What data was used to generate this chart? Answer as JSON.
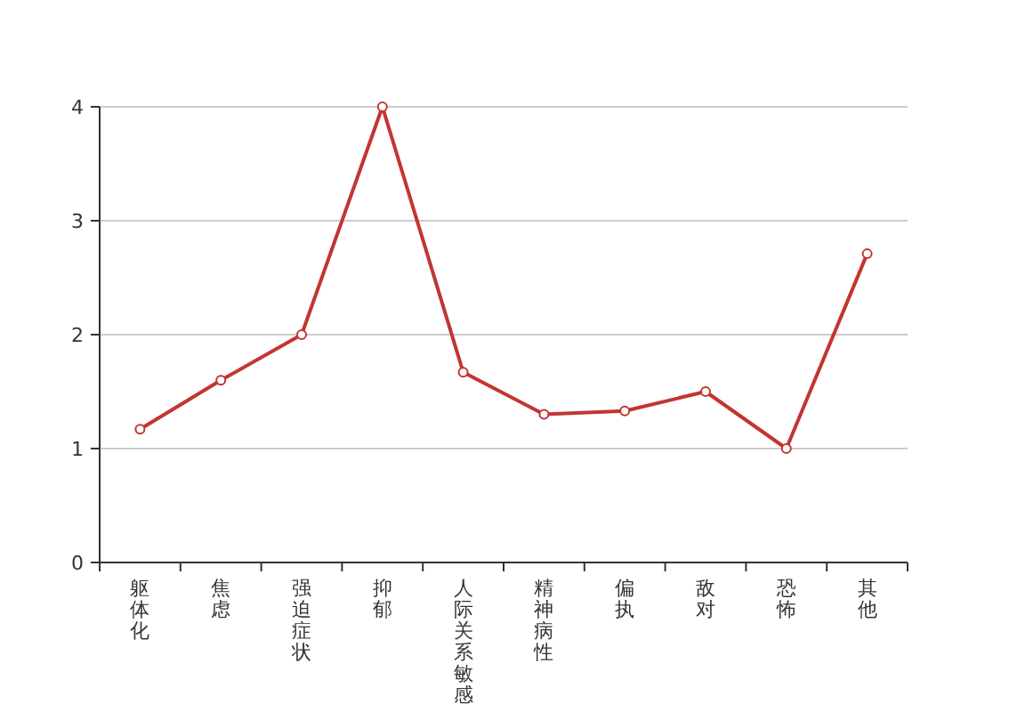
{
  "chart_data": {
    "type": "line",
    "categories": [
      "躯体化",
      "焦虑",
      "强迫症状",
      "抑郁",
      "人际关系敏感",
      "精神病性",
      "偏执",
      "敌对",
      "恐怖",
      "其他"
    ],
    "series": [
      {
        "color": "#c23531",
        "values": [
          1.17,
          1.6,
          2.0,
          4.0,
          1.67,
          1.3,
          1.33,
          1.5,
          1.0,
          2.71
        ]
      }
    ],
    "ylim": [
      0,
      4
    ],
    "yticks": [
      0,
      1,
      2,
      3,
      4
    ],
    "grid": "y",
    "marker": "circle",
    "line_style": "solid"
  }
}
